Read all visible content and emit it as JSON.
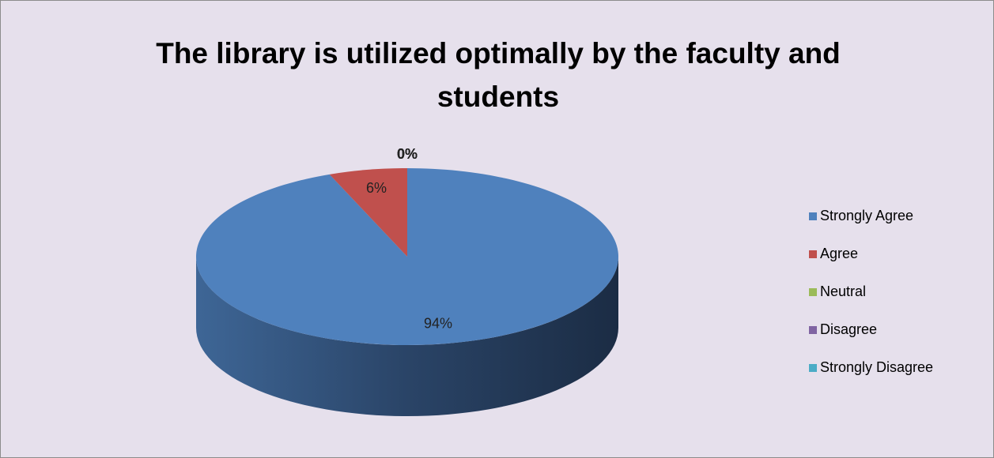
{
  "chart_data": {
    "type": "pie",
    "title": "The library is utilized optimally by the faculty and students",
    "categories": [
      "Strongly Agree",
      "Agree",
      "Neutral",
      "Disagree",
      "Strongly Disagree"
    ],
    "values": [
      94,
      6,
      0,
      0,
      0
    ],
    "value_labels": [
      "94%",
      "6%",
      "0%",
      "0%",
      "0%"
    ],
    "colors": [
      "#4f81bd",
      "#c0504d",
      "#9bbb59",
      "#8064a2",
      "#4bacc6"
    ],
    "legend": "right"
  }
}
